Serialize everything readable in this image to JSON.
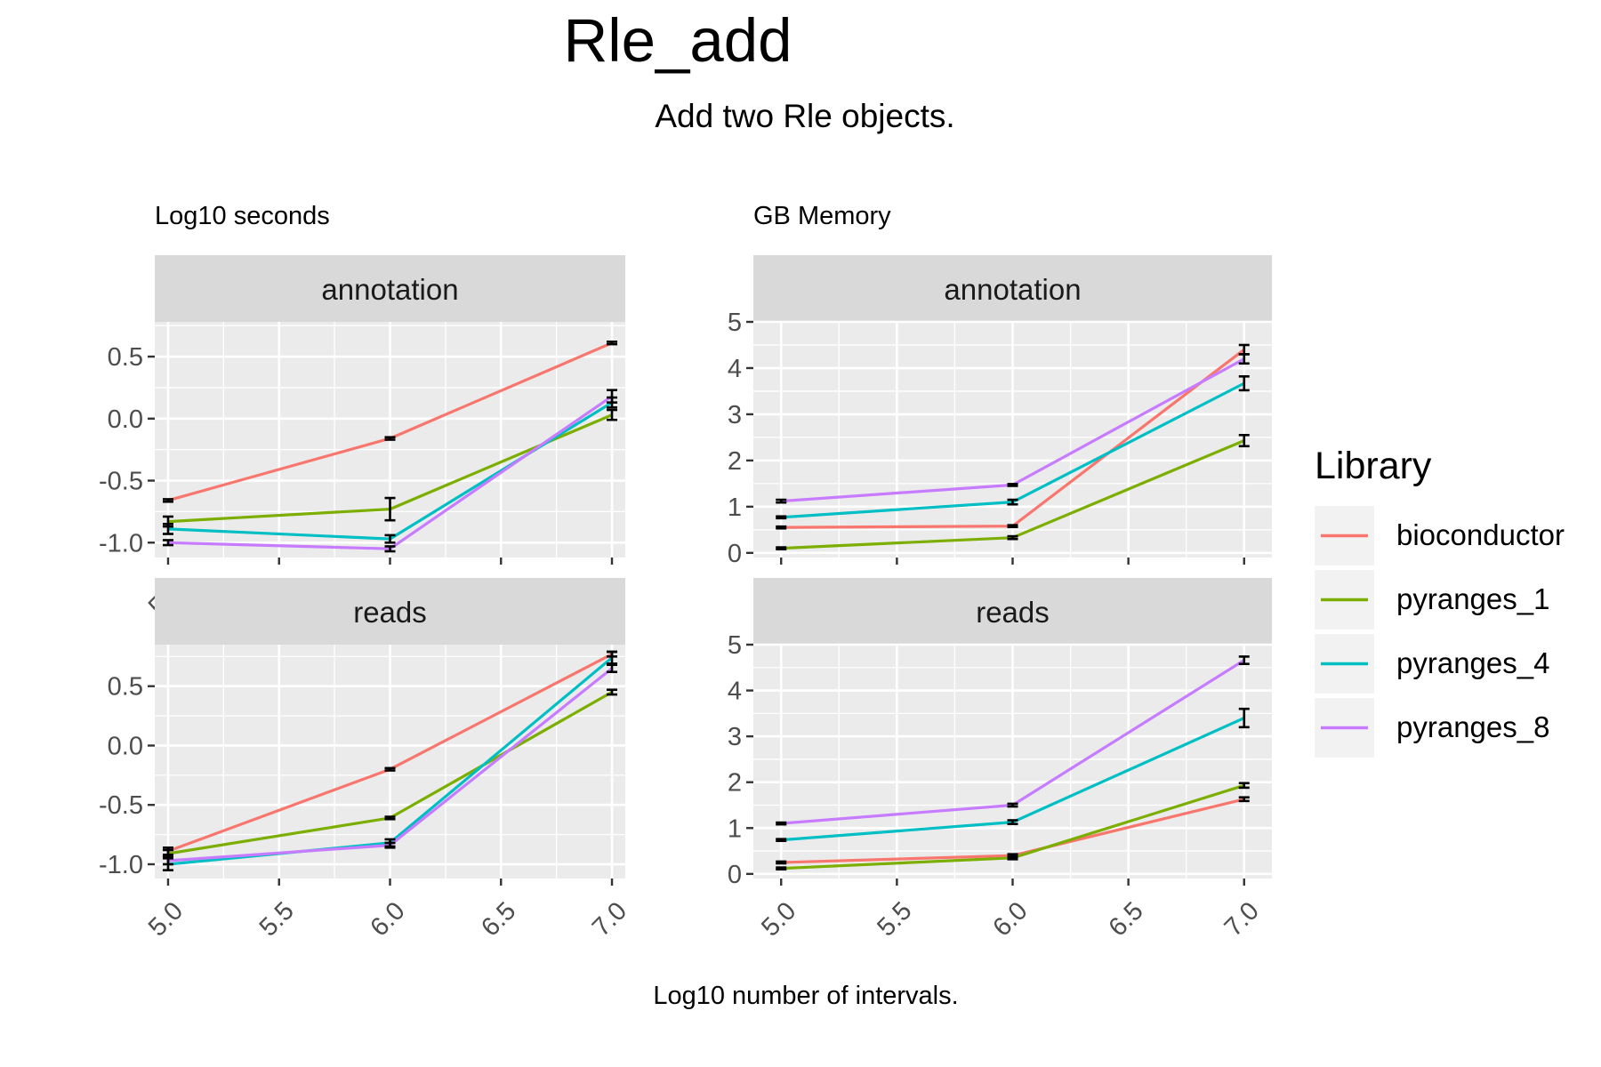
{
  "title": "Rle_add",
  "subtitle": "Add two Rle objects.",
  "xlabel": "Log10 number of intervals.",
  "left_label": "Log10 seconds",
  "right_label": "GB Memory",
  "legend": {
    "title": "Library",
    "items": [
      {
        "name": "bioconductor",
        "color": "#F8766D"
      },
      {
        "name": "pyranges_1",
        "color": "#7CAE00"
      },
      {
        "name": "pyranges_4",
        "color": "#00BFC4"
      },
      {
        "name": "pyranges_8",
        "color": "#C77CFF"
      }
    ]
  },
  "chart_data": [
    {
      "type": "line",
      "metric": "Log10 seconds",
      "panel": "annotation",
      "x": [
        5.0,
        6.0,
        7.0
      ],
      "xlim": [
        4.94,
        7.06
      ],
      "ylim": [
        -1.12,
        0.78
      ],
      "xticks": [
        "5.0",
        "5.5",
        "6.0",
        "6.5",
        "7.0"
      ],
      "xtick_values": [
        5.0,
        5.5,
        6.0,
        6.5,
        7.0
      ],
      "yticks": [
        "0.5",
        "0.0",
        "-0.5",
        "-1.0"
      ],
      "ytick_values": [
        0.5,
        0.0,
        -0.5,
        -1.0
      ],
      "series": [
        {
          "name": "bioconductor",
          "values": [
            -0.66,
            -0.16,
            0.61
          ],
          "err": [
            0.01,
            0.01,
            0.01
          ]
        },
        {
          "name": "pyranges_1",
          "values": [
            -0.83,
            -0.73,
            0.03
          ],
          "err": [
            0.04,
            0.09,
            0.04
          ]
        },
        {
          "name": "pyranges_4",
          "values": [
            -0.89,
            -0.97,
            0.13
          ],
          "err": [
            0.04,
            0.03,
            0.04
          ]
        },
        {
          "name": "pyranges_8",
          "values": [
            -1.0,
            -1.05,
            0.18
          ],
          "err": [
            0.02,
            0.02,
            0.05
          ]
        }
      ]
    },
    {
      "type": "line",
      "metric": "GB Memory",
      "panel": "annotation",
      "x": [
        5.0,
        6.0,
        7.0
      ],
      "xlim": [
        4.88,
        7.12
      ],
      "ylim": [
        -0.1,
        5.0
      ],
      "xticks": [
        "5.0",
        "5.5",
        "6.0",
        "6.5",
        "7.0"
      ],
      "xtick_values": [
        5.0,
        5.5,
        6.0,
        6.5,
        7.0
      ],
      "yticks": [
        "5",
        "4",
        "3",
        "2",
        "1",
        "0"
      ],
      "ytick_values": [
        5,
        4,
        3,
        2,
        1,
        0
      ],
      "series": [
        {
          "name": "bioconductor",
          "values": [
            0.55,
            0.58,
            4.4
          ],
          "err": [
            0.02,
            0.02,
            0.1
          ]
        },
        {
          "name": "pyranges_1",
          "values": [
            0.1,
            0.33,
            2.43
          ],
          "err": [
            0.02,
            0.03,
            0.12
          ]
        },
        {
          "name": "pyranges_4",
          "values": [
            0.77,
            1.1,
            3.67
          ],
          "err": [
            0.02,
            0.05,
            0.15
          ]
        },
        {
          "name": "pyranges_8",
          "values": [
            1.12,
            1.47,
            4.2
          ],
          "err": [
            0.03,
            0.02,
            0.1
          ]
        }
      ]
    },
    {
      "type": "line",
      "metric": "Log10 seconds",
      "panel": "reads",
      "x": [
        5.0,
        6.0,
        7.0
      ],
      "xlim": [
        4.94,
        7.06
      ],
      "ylim": [
        -1.12,
        0.85
      ],
      "xticks": [
        "5.0",
        "5.5",
        "6.0",
        "6.5",
        "7.0"
      ],
      "xtick_values": [
        5.0,
        5.5,
        6.0,
        6.5,
        7.0
      ],
      "yticks": [
        "0.5",
        "0.0",
        "-0.5",
        "-1.0"
      ],
      "ytick_values": [
        0.5,
        0.0,
        -0.5,
        -1.0
      ],
      "series": [
        {
          "name": "bioconductor",
          "values": [
            -0.89,
            -0.2,
            0.77
          ],
          "err": [
            0.03,
            0.01,
            0.02
          ]
        },
        {
          "name": "pyranges_1",
          "values": [
            -0.91,
            -0.61,
            0.45
          ],
          "err": [
            0.03,
            0.01,
            0.02
          ]
        },
        {
          "name": "pyranges_4",
          "values": [
            -1.0,
            -0.82,
            0.74
          ],
          "err": [
            0.05,
            0.03,
            0.05
          ]
        },
        {
          "name": "pyranges_8",
          "values": [
            -0.97,
            -0.84,
            0.65
          ],
          "err": [
            0.03,
            0.02,
            0.03
          ]
        }
      ]
    },
    {
      "type": "line",
      "metric": "GB Memory",
      "panel": "reads",
      "x": [
        5.0,
        6.0,
        7.0
      ],
      "xlim": [
        4.88,
        7.12
      ],
      "ylim": [
        -0.1,
        5.0
      ],
      "xticks": [
        "5.0",
        "5.5",
        "6.0",
        "6.5",
        "7.0"
      ],
      "xtick_values": [
        5.0,
        5.5,
        6.0,
        6.5,
        7.0
      ],
      "yticks": [
        "5",
        "4",
        "3",
        "2",
        "1",
        "0"
      ],
      "ytick_values": [
        5,
        4,
        3,
        2,
        1,
        0
      ],
      "series": [
        {
          "name": "bioconductor",
          "values": [
            0.25,
            0.4,
            1.63
          ],
          "err": [
            0.02,
            0.03,
            0.04
          ]
        },
        {
          "name": "pyranges_1",
          "values": [
            0.12,
            0.35,
            1.93
          ],
          "err": [
            0.02,
            0.03,
            0.05
          ]
        },
        {
          "name": "pyranges_4",
          "values": [
            0.74,
            1.13,
            3.4
          ],
          "err": [
            0.02,
            0.04,
            0.2
          ]
        },
        {
          "name": "pyranges_8",
          "values": [
            1.1,
            1.5,
            4.66
          ],
          "err": [
            0.02,
            0.03,
            0.08
          ]
        }
      ]
    }
  ]
}
